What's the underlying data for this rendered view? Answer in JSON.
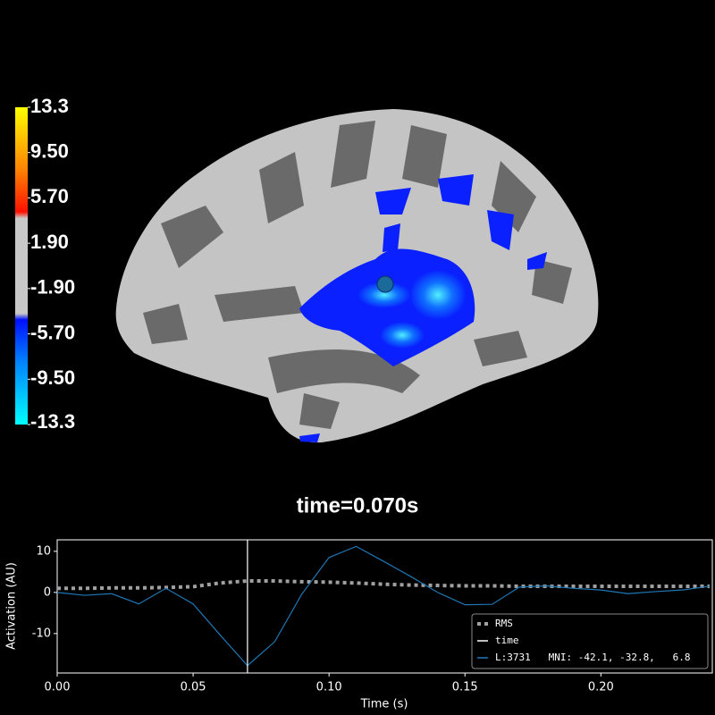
{
  "colorbar": {
    "lim": [
      -13.3,
      13.3
    ],
    "ticks": [
      13.3,
      {
        "value": 9.5,
        "label": "9.50"
      },
      {
        "value": 5.7,
        "label": "5.70"
      },
      {
        "value": 1.9,
        "label": "1.90"
      },
      {
        "value": -1.9,
        "label": "-1.90"
      },
      {
        "value": -5.7,
        "label": "-5.70"
      },
      {
        "value": -9.5,
        "label": "-9.50"
      },
      -13.3
    ]
  },
  "chart_data": {
    "type": "line",
    "title": "time=0.070s",
    "x_label": "Time (s)",
    "y_label": "Activation (AU)",
    "x": [
      0.0,
      0.01,
      0.02,
      0.03,
      0.04,
      0.05,
      0.06,
      0.07,
      0.08,
      0.09,
      0.1,
      0.11,
      0.12,
      0.13,
      0.14,
      0.15,
      0.16,
      0.17,
      0.18,
      0.19,
      0.2,
      0.21,
      0.22,
      0.23,
      0.24
    ],
    "series": [
      {
        "name": "RMS",
        "color": "#a0a0a0",
        "dashed": true,
        "values": [
          1.0,
          1.0,
          1.1,
          1.1,
          1.2,
          1.4,
          2.3,
          2.8,
          2.8,
          2.6,
          2.5,
          2.3,
          2.0,
          1.8,
          1.7,
          1.6,
          1.6,
          1.5,
          1.5,
          1.5,
          1.5,
          1.5,
          1.5,
          1.5,
          1.5
        ]
      },
      {
        "name": "L:3731   MNI: -42.1, -32.8,   6.8",
        "color": "#1f77b4",
        "values": [
          0.0,
          -0.7,
          -0.3,
          -2.8,
          1.0,
          -2.8,
          -10.4,
          -17.8,
          -12.0,
          -0.4,
          8.5,
          11.2,
          7.6,
          3.9,
          0.0,
          -3.0,
          -2.9,
          1.3,
          1.6,
          1.0,
          0.6,
          -0.3,
          0.2,
          0.6,
          1.5
        ]
      }
    ],
    "cursor": {
      "name": "time",
      "value": 0.07,
      "color": "#ffffff"
    },
    "xlim": [
      0,
      0.241
    ],
    "ylim": [
      -19.6,
      12.8
    ],
    "xticks": [
      {
        "value": 0,
        "label": "0.00"
      },
      {
        "value": 0.05,
        "label": "0.05"
      },
      {
        "value": 0.1,
        "label": "0.10"
      },
      {
        "value": 0.15,
        "label": "0.15"
      },
      {
        "value": 0.2,
        "label": "0.20"
      }
    ],
    "yticks": [
      10,
      0,
      -10
    ],
    "legend": "lower right"
  }
}
